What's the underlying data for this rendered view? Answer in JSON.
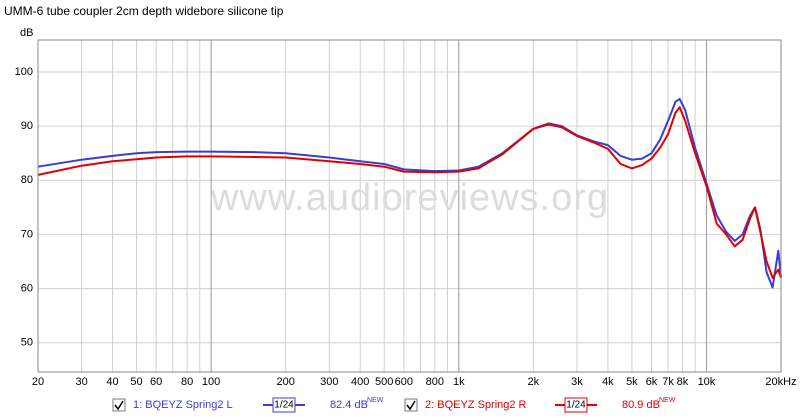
{
  "chart_data": {
    "type": "line",
    "title": "UMM-6 tube coupler 2cm depth widebore silicone tip",
    "y_label": "dB",
    "watermark": "www.audioreviews.org",
    "log_x": true,
    "grid": true,
    "xlim": [
      20,
      20000
    ],
    "ylim": [
      44.6,
      105.9
    ],
    "xticks": [
      20,
      30,
      40,
      50,
      60,
      80,
      100,
      200,
      300,
      400,
      500,
      600,
      800,
      {
        "value": 1000,
        "label": "1k"
      },
      {
        "value": 2000,
        "label": "2k"
      },
      {
        "value": 3000,
        "label": "3k"
      },
      {
        "value": 4000,
        "label": "4k"
      },
      {
        "value": 5000,
        "label": "5k"
      },
      {
        "value": 6000,
        "label": "6k"
      },
      {
        "value": 7000,
        "label": "7k"
      },
      {
        "value": 8000,
        "label": "8k"
      },
      {
        "value": 10000,
        "label": "10k"
      },
      {
        "value": 20000,
        "label": "20kHz"
      }
    ],
    "x_minor_grid": [
      70,
      90,
      700,
      900,
      9000
    ],
    "yticks": [
      50,
      60,
      70,
      80,
      90,
      100
    ],
    "x": [
      20,
      30,
      40,
      50,
      60,
      80,
      100,
      150,
      200,
      300,
      400,
      500,
      600,
      800,
      1000,
      1200,
      1500,
      2000,
      2300,
      2600,
      3000,
      3500,
      4000,
      4500,
      5000,
      5500,
      6000,
      6500,
      7000,
      7500,
      7800,
      8200,
      9000,
      10000,
      11000,
      12000,
      13000,
      14000,
      15000,
      15700,
      16500,
      17500,
      18500,
      19500,
      20000
    ],
    "series": [
      {
        "name": "1: BQEYZ Spring2 L",
        "color": "#3c3cd2",
        "smoothing": "1/24",
        "level": "82.4 dB",
        "level_note": "NEW",
        "values": [
          82.5,
          83.8,
          84.5,
          85,
          85.2,
          85.3,
          85.3,
          85.2,
          85,
          84.2,
          83.5,
          83,
          82,
          81.7,
          81.8,
          82.5,
          85,
          89.5,
          90.5,
          90,
          88.3,
          87.2,
          86.5,
          84.5,
          83.8,
          84,
          85,
          87.5,
          91,
          94.5,
          95,
          93,
          86,
          79.5,
          73.5,
          70.5,
          68.8,
          70,
          73.5,
          75,
          71,
          63,
          60.2,
          67,
          62
        ]
      },
      {
        "name": "2: BQEYZ Spring2 R",
        "color": "#e00000",
        "smoothing": "1/24",
        "level": "80.9 dB",
        "level_note": "NEW",
        "values": [
          81,
          82.7,
          83.5,
          83.9,
          84.2,
          84.4,
          84.4,
          84.3,
          84.2,
          83.5,
          83,
          82.5,
          81.6,
          81.5,
          81.6,
          82.2,
          84.8,
          89.5,
          90.3,
          89.8,
          88.2,
          87,
          85.8,
          83,
          82.2,
          82.8,
          84,
          86,
          88.5,
          92.5,
          93.5,
          91,
          85,
          79,
          72,
          70,
          67.8,
          69,
          73,
          75,
          70.5,
          65,
          62,
          63.5,
          62
        ]
      }
    ]
  }
}
